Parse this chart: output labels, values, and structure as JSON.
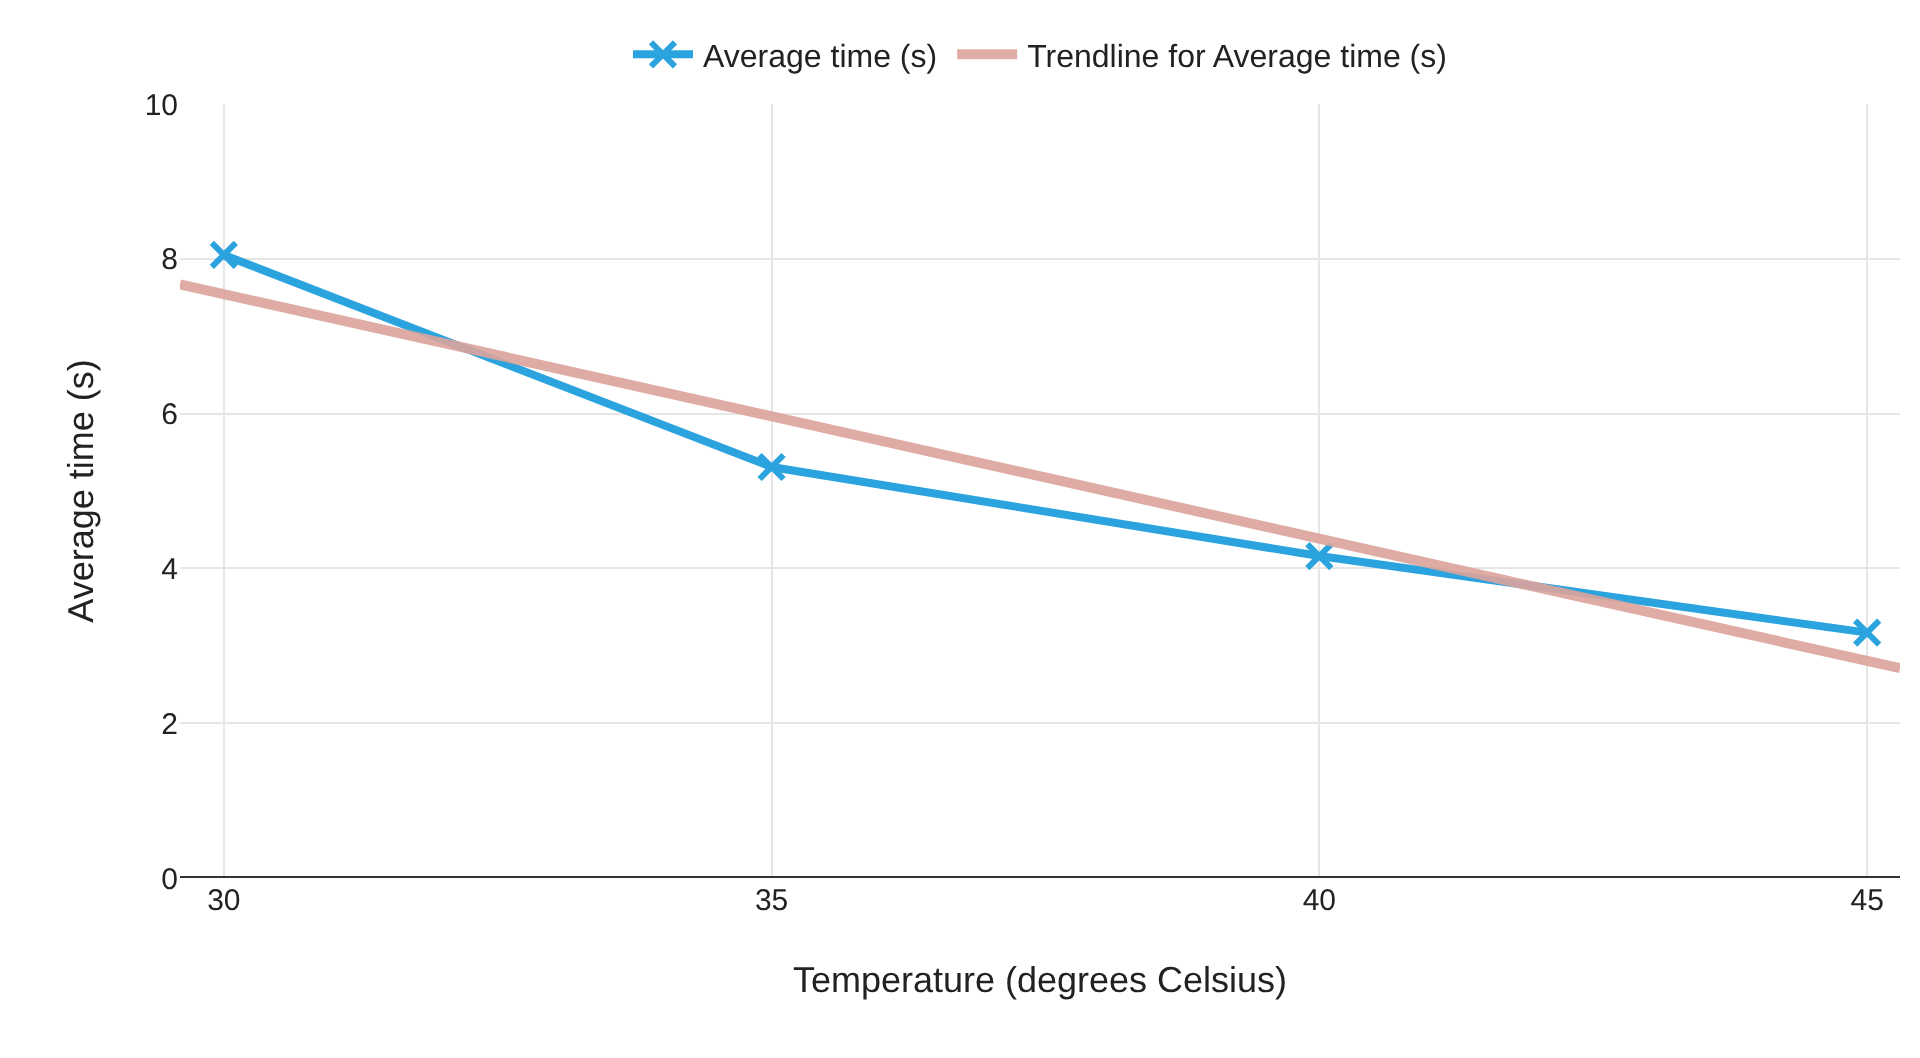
{
  "chart_data": {
    "type": "line",
    "xlabel": "Temperature (degrees Celsius)",
    "ylabel": "Average time (s)",
    "x": [
      30,
      35,
      40,
      45
    ],
    "series": [
      {
        "name": "Average time (s)",
        "color": "#2ba3de",
        "values": [
          8.05,
          5.31,
          4.16,
          3.17
        ],
        "marker": "cross"
      },
      {
        "name": "Trendline for Average time (s)",
        "color": "#dca49c",
        "type": "line",
        "x": [
          29.6,
          45.3
        ],
        "values": [
          7.67,
          2.71
        ],
        "marker": "none"
      }
    ],
    "xlim": [
      29.6,
      45.3
    ],
    "xticks": [
      30,
      35,
      40,
      45
    ],
    "ylim": [
      0,
      10
    ],
    "yticks": [
      0,
      2,
      4,
      6,
      8,
      10
    ],
    "grid": true,
    "legend": "top"
  }
}
